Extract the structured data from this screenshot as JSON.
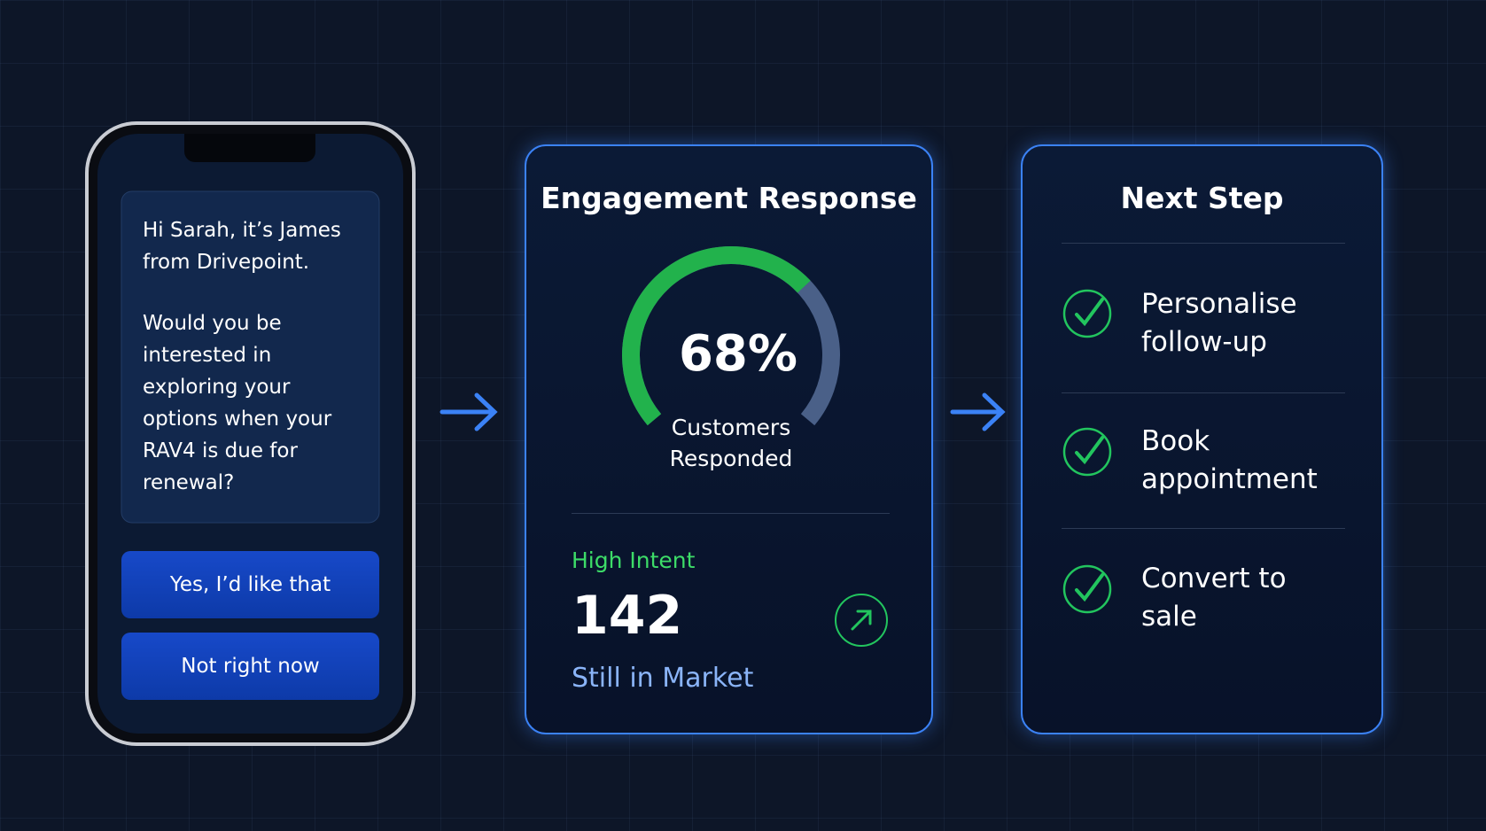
{
  "phone": {
    "message": [
      "Hi Sarah, it’s James from Drivepoint.",
      "Would you be interested in exploring your options when your RAV4 is due for renewal?"
    ],
    "buttons": [
      "Yes, I’d like that",
      "Not right now"
    ]
  },
  "engagement": {
    "title": "Engagement Response",
    "gauge": {
      "value": 68,
      "value_label": "68%",
      "caption": "Customers Responded"
    },
    "intent": {
      "label": "High Intent",
      "value": 142,
      "caption": "Still in Market"
    }
  },
  "next_step": {
    "title": "Next Step",
    "items": [
      "Personalise follow-up",
      "Book appointment",
      "Convert to sale"
    ]
  }
}
